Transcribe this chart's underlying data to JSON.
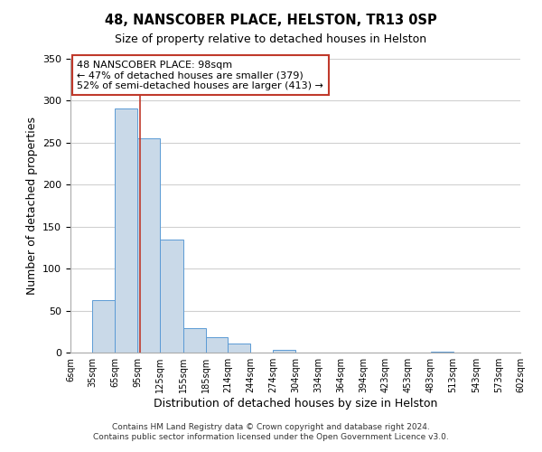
{
  "title": "48, NANSCOBER PLACE, HELSTON, TR13 0SP",
  "subtitle": "Size of property relative to detached houses in Helston",
  "xlabel": "Distribution of detached houses by size in Helston",
  "ylabel": "Number of detached properties",
  "bin_edges": [
    6,
    35,
    65,
    95,
    125,
    155,
    185,
    214,
    244,
    274,
    304,
    334,
    364,
    394,
    423,
    453,
    483,
    513,
    543,
    573,
    602
  ],
  "bin_counts": [
    0,
    62,
    291,
    255,
    135,
    29,
    18,
    11,
    0,
    3,
    0,
    0,
    0,
    0,
    0,
    0,
    1,
    0,
    0,
    0
  ],
  "bar_facecolor": "#c9d9e8",
  "bar_edgecolor": "#5b9bd5",
  "property_value": 98,
  "vline_color": "#c0392b",
  "annotation_text": "48 NANSCOBER PLACE: 98sqm\n← 47% of detached houses are smaller (379)\n52% of semi-detached houses are larger (413) →",
  "annotation_box_edgecolor": "#c0392b",
  "ylim": [
    0,
    350
  ],
  "yticks": [
    0,
    50,
    100,
    150,
    200,
    250,
    300,
    350
  ],
  "tick_labels": [
    "6sqm",
    "35sqm",
    "65sqm",
    "95sqm",
    "125sqm",
    "155sqm",
    "185sqm",
    "214sqm",
    "244sqm",
    "274sqm",
    "304sqm",
    "334sqm",
    "364sqm",
    "394sqm",
    "423sqm",
    "453sqm",
    "483sqm",
    "513sqm",
    "543sqm",
    "573sqm",
    "602sqm"
  ],
  "footer_line1": "Contains HM Land Registry data © Crown copyright and database right 2024.",
  "footer_line2": "Contains public sector information licensed under the Open Government Licence v3.0.",
  "background_color": "#ffffff",
  "grid_color": "#d0d0d0"
}
